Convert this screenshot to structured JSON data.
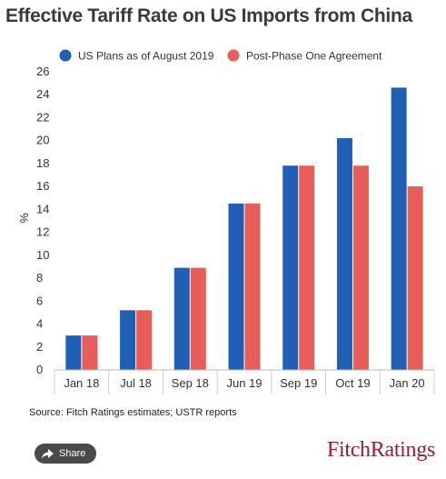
{
  "header": {
    "title": "Effective Tariff Rate on US Imports from China"
  },
  "chart_data": {
    "type": "bar",
    "categories": [
      "Jan 18",
      "Jul 18",
      "Sep 18",
      "Jun 19",
      "Sep 19",
      "Oct 19",
      "Jan 20"
    ],
    "series": [
      {
        "name": "US Plans as of August 2019",
        "color": "#1f5fb5",
        "values": [
          3.0,
          5.2,
          8.9,
          14.5,
          17.8,
          20.2,
          24.6
        ]
      },
      {
        "name": "Post-Phase One Agreement",
        "color": "#e85d58",
        "values": [
          3.0,
          5.2,
          8.9,
          14.5,
          17.8,
          17.8,
          16.0
        ]
      }
    ],
    "ylabel": "%",
    "ylim": [
      0,
      26
    ],
    "yticks": [
      "0",
      "2",
      "4",
      "6",
      "8",
      "10",
      "12",
      "14",
      "16",
      "18",
      "20",
      "22",
      "24",
      "26"
    ],
    "grid": false,
    "legend": "top-left"
  },
  "footer": {
    "source": "Source: Fitch Ratings estimates; USTR reports",
    "share_label": "Share",
    "share_icon": "share-icon",
    "brand": "FitchRatings"
  }
}
